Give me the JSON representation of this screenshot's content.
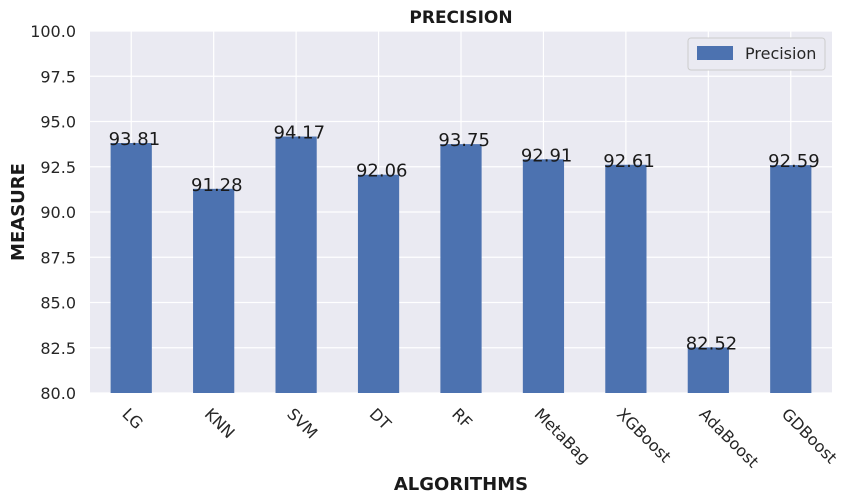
{
  "chart_data": {
    "type": "bar",
    "title": "PRECISION",
    "xlabel": "ALGORITHMS",
    "ylabel": "MEASURE",
    "categories": [
      "LG",
      "KNN",
      "SVM",
      "DT",
      "RF",
      "MetaBag",
      "XGBoost",
      "AdaBoost",
      "GDBoost"
    ],
    "series": [
      {
        "name": "Precision",
        "values": [
          93.81,
          91.28,
          94.17,
          92.06,
          93.75,
          92.91,
          92.61,
          82.52,
          92.59
        ]
      }
    ],
    "data_labels": [
      "93.81",
      "91.28",
      "94.17",
      "92.06",
      "93.75",
      "92.91",
      "92.61",
      "82.52",
      "92.59"
    ],
    "ylim": [
      80,
      100
    ],
    "yticks": [
      "80.0",
      "82.5",
      "85.0",
      "87.5",
      "90.0",
      "92.5",
      "95.0",
      "97.5",
      "100.0"
    ],
    "grid": true,
    "legend_position": "top-right",
    "colors": {
      "bar": "#4c72b0",
      "plot_background": "#eaeaf2",
      "grid": "#ffffff"
    }
  }
}
